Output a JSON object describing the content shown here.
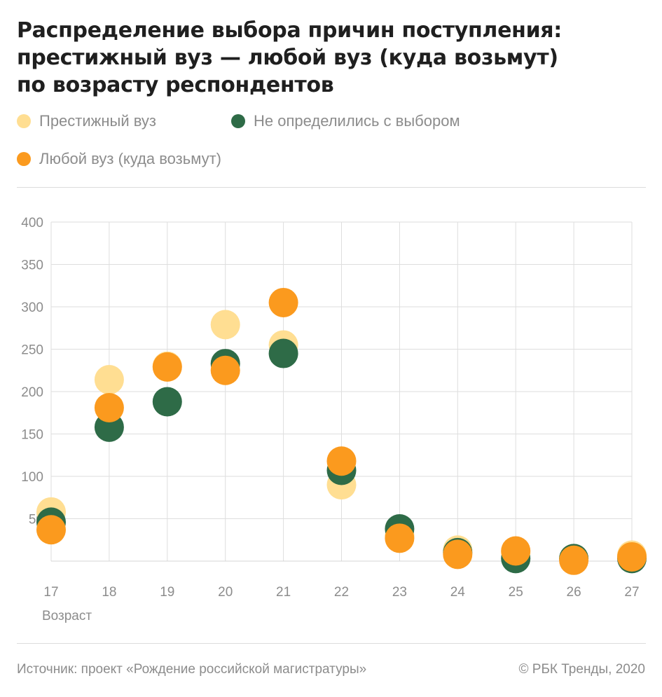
{
  "title_lines": [
    "Распределение выбора причин поступления:",
    "престижный вуз — любой вуз (куда возьмут)",
    "по возрасту респондентов"
  ],
  "legend": [
    {
      "label": "Престижный вуз",
      "color": "#FFDE92"
    },
    {
      "label": "Не определились с выбором",
      "color": "#2E6B47"
    },
    {
      "label": "Любой вуз (куда возьмут)",
      "color": "#FB9A1E"
    }
  ],
  "chart_data": {
    "type": "scatter",
    "xlabel": "Возраст",
    "x": [
      17,
      18,
      19,
      20,
      21,
      22,
      23,
      24,
      25,
      26,
      27
    ],
    "ylim": [
      0,
      400
    ],
    "y_ticks": [
      50,
      100,
      150,
      200,
      250,
      300,
      350,
      400
    ],
    "grid": true,
    "series": [
      {
        "name": "Престижный вуз",
        "color": "#FFDE92",
        "values": [
          58,
          214,
          230,
          279,
          255,
          90,
          30,
          13,
          10,
          3,
          7
        ]
      },
      {
        "name": "Не определились с выбором",
        "color": "#2E6B47",
        "values": [
          46,
          158,
          188,
          233,
          245,
          107,
          38,
          10,
          3,
          3,
          3
        ]
      },
      {
        "name": "Любой вуз (куда возьмут)",
        "color": "#FB9A1E",
        "values": [
          37,
          181,
          229,
          225,
          305,
          118,
          27,
          8,
          12,
          1,
          5
        ]
      }
    ]
  },
  "footer": {
    "source": "Источник: проект «Рождение российской магистратуры»",
    "copyright": "© РБК Тренды, 2020"
  }
}
